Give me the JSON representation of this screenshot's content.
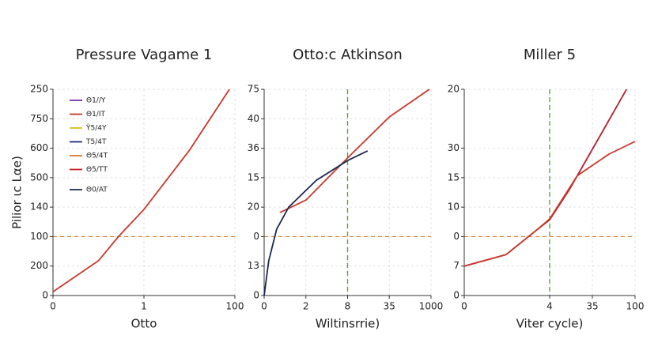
{
  "chart_data": [
    {
      "type": "line",
      "title": "Pressure Vagame 1",
      "xlabel": "Otto",
      "ylabel": "Pilior ιc Lαe)",
      "xlim": [
        0,
        4
      ],
      "ylim": [
        0,
        7
      ],
      "xticks": [
        0,
        {
          "value": 2,
          "label": "1"
        },
        {
          "value": 4,
          "label": "100"
        }
      ],
      "yticks": [
        {
          "value": 7,
          "label": "250"
        },
        {
          "value": 6,
          "label": "750"
        },
        {
          "value": 5,
          "label": "600"
        },
        {
          "value": 4,
          "label": "500"
        },
        {
          "value": 3,
          "label": "140"
        },
        {
          "value": 2,
          "label": "100"
        },
        {
          "value": 1,
          "label": "200"
        },
        0
      ],
      "grid": true,
      "hline": 2,
      "legend": [
        {
          "name": "Θ1//Y",
          "color": "#7b2fa8"
        },
        {
          "name": "Θ1/ΙT",
          "color": "#c8382c"
        },
        {
          "name": "Ϋ5/4Y",
          "color": "#d9c21a"
        },
        {
          "name": "Τ5/4T",
          "color": "#1f2f7a"
        },
        {
          "name": "Θ5/4T",
          "color": "#e0772a"
        },
        {
          "name": "Θ5/ΤT",
          "color": "#c8202a"
        },
        {
          "name": "Θ0/AT",
          "color": "#1c2a55"
        }
      ],
      "series": [
        {
          "color": "#c8382c",
          "x": [
            0,
            1,
            1.44,
            2,
            3,
            3.88
          ],
          "values": [
            0.13,
            1.18,
            2.0,
            2.92,
            4.93,
            7
          ]
        }
      ]
    },
    {
      "type": "line",
      "title": "Otto:c Atkinson",
      "xlabel": "Wiltinsrrie)",
      "xlim": [
        0,
        4
      ],
      "ylim": [
        0,
        7
      ],
      "xticks": [
        0,
        {
          "value": 1,
          "label": "2"
        },
        {
          "value": 2,
          "label": "8"
        },
        {
          "value": 3,
          "label": "35"
        },
        {
          "value": 4,
          "label": "1000"
        }
      ],
      "yticks": [
        {
          "value": 7,
          "label": "75"
        },
        {
          "value": 6,
          "label": "40"
        },
        {
          "value": 5,
          "label": "36"
        },
        {
          "value": 4,
          "label": "15"
        },
        {
          "value": 3,
          "label": "20"
        },
        {
          "value": 2,
          "label": "0"
        },
        {
          "value": 1,
          "label": "13"
        },
        0
      ],
      "grid": true,
      "hline": 2,
      "vline": 2,
      "series": [
        {
          "color": "#c8382c",
          "x": [
            0.38,
            1,
            2,
            3,
            3.96
          ],
          "values": [
            2.82,
            3.24,
            4.67,
            6.06,
            7
          ]
        },
        {
          "color": "#1c2a55",
          "x": [
            0,
            0.11,
            0.3,
            0.59,
            1.25,
            2,
            2.48
          ],
          "values": [
            0,
            1.18,
            2.25,
            3.0,
            3.91,
            4.58,
            4.91
          ]
        }
      ]
    },
    {
      "type": "line",
      "title": "Miller 5",
      "xlabel": "Viter cycle)",
      "xlim": [
        0,
        4
      ],
      "ylim": [
        0,
        7
      ],
      "xticks": [
        0,
        {
          "value": 2,
          "label": "4"
        },
        {
          "value": 3,
          "label": "35"
        },
        {
          "value": 4,
          "label": "100"
        }
      ],
      "yticks": [
        {
          "value": 7,
          "label": "20"
        },
        {
          "value": 5,
          "label": "30"
        },
        {
          "value": 4,
          "label": "15"
        },
        {
          "value": 3,
          "label": "10"
        },
        {
          "value": 2,
          "label": "0"
        },
        {
          "value": 1,
          "label": "7"
        },
        0
      ],
      "grid": true,
      "hline": 2,
      "vline": 2,
      "series": [
        {
          "color": "#b8202e",
          "x": [
            0,
            0.98,
            1.72,
            2,
            2.46,
            3.2,
            3.8
          ],
          "values": [
            1,
            1.39,
            2.25,
            2.57,
            3.59,
            5.47,
            7
          ]
        },
        {
          "color": "#c8382c",
          "x": [
            0,
            0.98,
            1.72,
            2,
            2.65,
            3.39,
            4
          ],
          "values": [
            1,
            1.39,
            2.25,
            2.6,
            4.07,
            4.8,
            5.23
          ]
        }
      ]
    }
  ]
}
